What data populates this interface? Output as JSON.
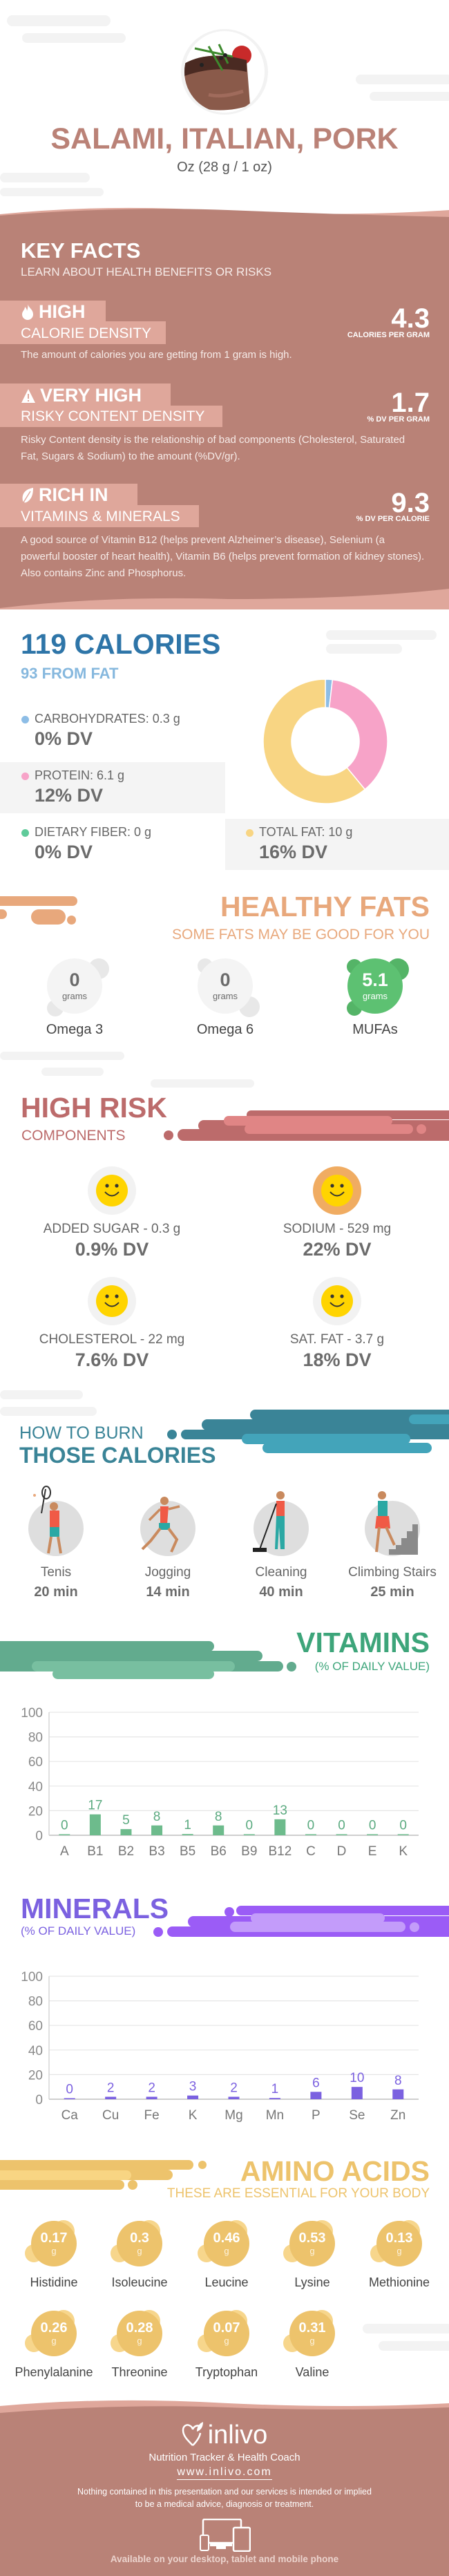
{
  "header": {
    "title": "SALAMI, ITALIAN, PORK",
    "serving": "Oz (28 g / 1 oz)",
    "image_icon": "steak-photo"
  },
  "key_facts": {
    "title": "KEY FACTS",
    "subtitle": "LEARN ABOUT HEALTH BENEFITS OR RISKS",
    "items": [
      {
        "icon": "flame-icon",
        "level": "HIGH",
        "label": "CALORIE DENSITY",
        "value": "4.3",
        "unit": "CALORIES PER GRAM",
        "desc": "The amount of calories you are getting from 1 gram is high."
      },
      {
        "icon": "warning-icon",
        "level": "VERY HIGH",
        "label": "RISKY CONTENT DENSITY",
        "value": "1.7",
        "unit": "% DV PER GRAM",
        "desc": "Risky Content density is the relationship of bad components (Cholesterol, Saturated Fat, Sugars & Sodium) to the amount (%DV/gr)."
      },
      {
        "icon": "leaf-icon",
        "level": "RICH  IN",
        "label": "VITAMINS & MINERALS",
        "value": "9.3",
        "unit": "% DV PER CALORIE",
        "desc": "A good source of Vitamin B12 (helps prevent Alzheimer’s disease), Selenium (a powerful booster of heart health), Vitamin B6 (helps prevent formation of kidney stones). Also contains Zinc and Phosphorus."
      }
    ]
  },
  "calories": {
    "title": "119 CALORIES",
    "from_fat": "93 FROM FAT",
    "macros": [
      {
        "label": "CARBOHYDRATES: 0.3 g",
        "dv": "0% DV",
        "grams": 0.3,
        "color": "#8DBDE6"
      },
      {
        "label": "PROTEIN: 6.1 g",
        "dv": "12% DV",
        "grams": 6.1,
        "color": "#F7A3C8"
      },
      {
        "label": "DIETARY FIBER: 0 g",
        "dv": "0% DV",
        "grams": 0,
        "color": "#5FCB9A"
      },
      {
        "label": "TOTAL FAT: 10 g",
        "dv": "16% DV",
        "grams": 10,
        "color": "#F8D583"
      }
    ]
  },
  "healthy_fats": {
    "title": "HEALTHY FATS",
    "subtitle": "SOME FATS MAY BE GOOD FOR YOU",
    "items": [
      {
        "value": "0",
        "unit": "grams",
        "name": "Omega 3"
      },
      {
        "value": "0",
        "unit": "grams",
        "name": "Omega 6"
      },
      {
        "value": "5.1",
        "unit": "grams",
        "name": "MUFAs"
      }
    ]
  },
  "high_risk": {
    "title": "HIGH RISK",
    "subtitle": "COMPONENTS",
    "items": [
      {
        "label": "ADDED SUGAR - 0.3 g",
        "dv": "0.9% DV",
        "level": "low"
      },
      {
        "label": "SODIUM - 529 mg",
        "dv": "22% DV",
        "level": "medium"
      },
      {
        "label": "CHOLESTEROL - 22 mg",
        "dv": "7.6% DV",
        "level": "low"
      },
      {
        "label": "SAT. FAT - 3.7 g",
        "dv": "18% DV",
        "level": "low"
      }
    ]
  },
  "burn": {
    "title_line1": "HOW TO BURN",
    "title_line2": "THOSE CALORIES",
    "activities": [
      {
        "name": "Tenis",
        "minutes": "20 min",
        "icon": "tennis-player-icon"
      },
      {
        "name": "Jogging",
        "minutes": "14 min",
        "icon": "jogger-icon"
      },
      {
        "name": "Cleaning",
        "minutes": "40 min",
        "icon": "cleaning-icon"
      },
      {
        "name": "Climbing Stairs",
        "minutes": "25 min",
        "icon": "stairs-climber-icon"
      }
    ]
  },
  "vitamins": {
    "title": "VITAMINS",
    "subtitle": "(% OF DAILY VALUE)"
  },
  "minerals": {
    "title": "MINERALS",
    "subtitle": "(% OF DAILY VALUE)"
  },
  "chart_data": [
    {
      "type": "bar",
      "title": "VITAMINS",
      "ylabel": "% of daily value",
      "ylim": [
        0,
        100
      ],
      "yticks": [
        "0",
        "20",
        "40",
        "60",
        "80",
        "100"
      ],
      "grid": true,
      "color": "#6DBB8C",
      "label_color": "#5BAA80",
      "categories": [
        "A",
        "B1",
        "B2",
        "B3",
        "B5",
        "B6",
        "B9",
        "B12",
        "C",
        "D",
        "E",
        "K"
      ],
      "values": [
        0,
        17,
        5,
        8,
        1,
        8,
        0,
        13,
        0,
        0,
        0,
        0
      ]
    },
    {
      "type": "bar",
      "title": "MINERALS",
      "ylabel": "% of daily value",
      "ylim": [
        0,
        100
      ],
      "yticks": [
        "0",
        "20",
        "40",
        "60",
        "80",
        "100"
      ],
      "grid": true,
      "color": "#7B61E0",
      "label_color": "#7B61E0",
      "categories": [
        "Ca",
        "Cu",
        "Fe",
        "K",
        "Mg",
        "Mn",
        "P",
        "Se",
        "Zn"
      ],
      "values": [
        0,
        2,
        2,
        3,
        2,
        1,
        6,
        10,
        8
      ]
    }
  ],
  "amino_acids": {
    "title": "AMINO ACIDS",
    "subtitle": "THESE ARE ESSENTIAL FOR YOUR BODY",
    "items": [
      {
        "value": "0.17",
        "unit": "g",
        "name": "Histidine"
      },
      {
        "value": "0.3",
        "unit": "g",
        "name": "Isoleucine"
      },
      {
        "value": "0.46",
        "unit": "g",
        "name": "Leucine"
      },
      {
        "value": "0.53",
        "unit": "g",
        "name": "Lysine"
      },
      {
        "value": "0.13",
        "unit": "g",
        "name": "Methionine"
      },
      {
        "value": "0.26",
        "unit": "g",
        "name": "Phenylalanine"
      },
      {
        "value": "0.28",
        "unit": "g",
        "name": "Threonine"
      },
      {
        "value": "0.07",
        "unit": "g",
        "name": "Tryptophan"
      },
      {
        "value": "0.31",
        "unit": "g",
        "name": "Valine"
      }
    ]
  },
  "footer": {
    "brand": "inlivo",
    "tagline": "Nutrition Tracker & Health Coach",
    "url": "www.inlivo.com",
    "disclaimer_line1": "Nothing contained in this presentation and our services is intended or implied",
    "disclaimer_line2": "to be a medical advice, diagnosis or treatment.",
    "available": "Available on your desktop, tablet and mobile phone"
  },
  "colors": {
    "brown": "#B98277",
    "pink": "#DFA79B",
    "blue": "#2E75A8",
    "orange": "#E8A87C",
    "red": "#BC6B6B",
    "teal": "#3A8497",
    "green": "#3DA57A",
    "purple": "#7B61E0",
    "yellow": "#EDC36C"
  }
}
